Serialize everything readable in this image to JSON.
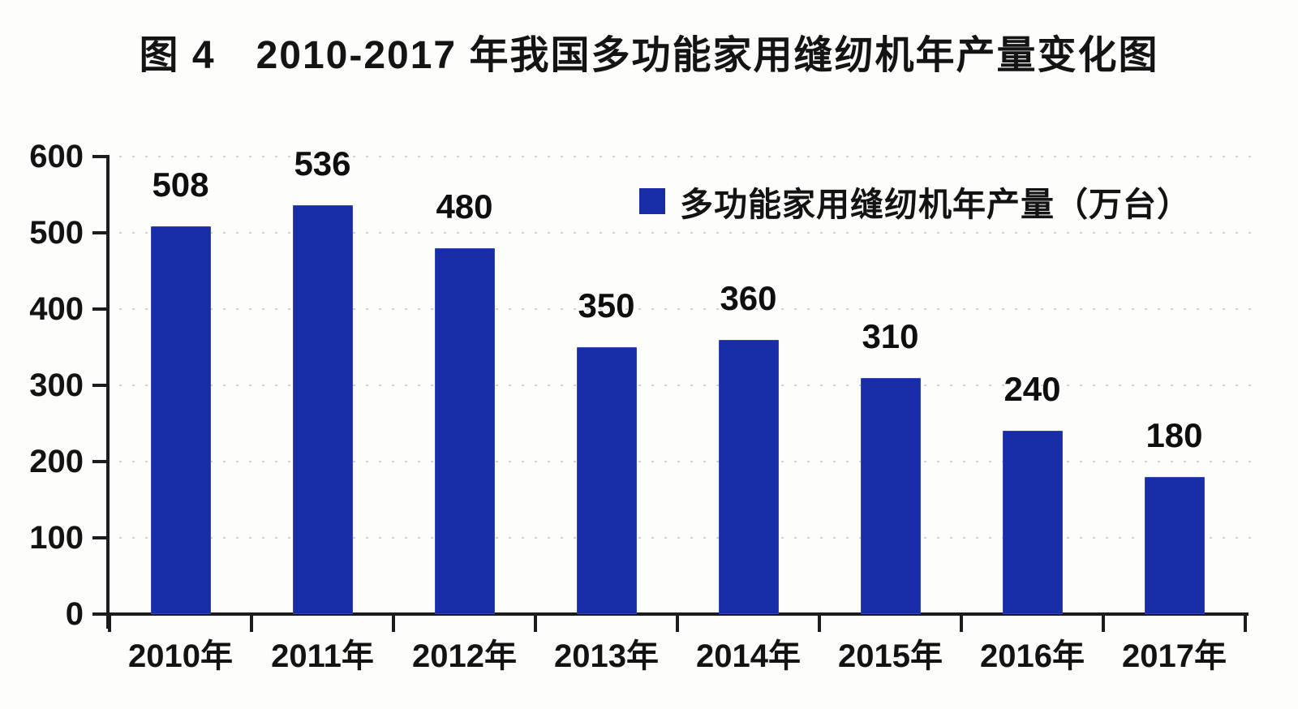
{
  "title": "图 4　2010-2017 年我国多功能家用缝纫机年产量变化图",
  "legend": {
    "label": "多功能家用缝纫机年产量（万台）",
    "marker_color": "#1a2da8"
  },
  "chart_data": {
    "type": "bar",
    "title": "图 4　2010-2017 年我国多功能家用缝纫机年产量变化图",
    "categories": [
      "2010年",
      "2011年",
      "2012年",
      "2013年",
      "2014年",
      "2015年",
      "2016年",
      "2017年"
    ],
    "values": [
      508,
      536,
      480,
      350,
      360,
      310,
      240,
      180
    ],
    "series_name": "多功能家用缝纫机年产量（万台）",
    "xlabel": "",
    "ylabel": "",
    "ylim": [
      0,
      600
    ],
    "yticks": [
      0,
      100,
      200,
      300,
      400,
      500,
      600
    ],
    "grid": "horizontal dotted, faint",
    "legend_position": "inside upper right",
    "data_labels": true,
    "bar_color": "#1a2da8",
    "axis_color": "#1c1c1e",
    "gridline_color": "#ababab",
    "text_color": "#131313",
    "background_color": "#fdfdfb"
  }
}
